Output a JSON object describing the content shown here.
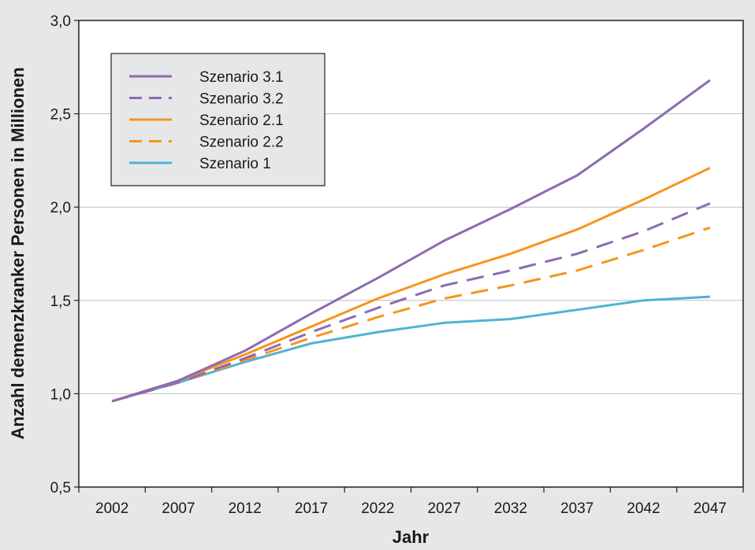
{
  "chart_data": {
    "type": "line",
    "title": "",
    "xlabel": "Jahr",
    "ylabel": "Anzahl demenzkranker Personen in Millionen",
    "categories": [
      "2002",
      "2007",
      "2012",
      "2017",
      "2022",
      "2027",
      "2032",
      "2037",
      "2042",
      "2047"
    ],
    "x": [
      2002,
      2007,
      2012,
      2017,
      2022,
      2027,
      2032,
      2037,
      2042,
      2047
    ],
    "ylim": [
      0.5,
      3.0
    ],
    "yticks": [
      0.5,
      1.0,
      1.5,
      2.0,
      2.5,
      3.0
    ],
    "ytick_labels": [
      "0,5",
      "1,0",
      "1,5",
      "2,0",
      "2,5",
      "3,0"
    ],
    "grid": "horizontal",
    "legend_position": "top-left",
    "series": [
      {
        "name": "Szenario 3.1",
        "color": "#8c6bb1",
        "dash": "solid",
        "values": [
          0.96,
          1.07,
          1.23,
          1.43,
          1.62,
          1.82,
          1.99,
          2.17,
          2.42,
          2.68
        ]
      },
      {
        "name": "Szenario 3.2",
        "color": "#8c6bb1",
        "dash": "dashed",
        "values": [
          0.96,
          1.06,
          1.19,
          1.33,
          1.46,
          1.58,
          1.66,
          1.75,
          1.87,
          2.02
        ]
      },
      {
        "name": "Szenario 2.1",
        "color": "#f7941d",
        "dash": "solid",
        "values": [
          0.96,
          1.07,
          1.21,
          1.36,
          1.51,
          1.64,
          1.75,
          1.88,
          2.04,
          2.21
        ]
      },
      {
        "name": "Szenario 2.2",
        "color": "#f7941d",
        "dash": "dashed",
        "values": [
          0.96,
          1.06,
          1.18,
          1.3,
          1.41,
          1.51,
          1.58,
          1.66,
          1.77,
          1.89
        ]
      },
      {
        "name": "Szenario 1",
        "color": "#4eb3d3",
        "dash": "solid",
        "values": [
          0.96,
          1.06,
          1.17,
          1.27,
          1.33,
          1.38,
          1.4,
          1.45,
          1.5,
          1.52
        ]
      }
    ]
  }
}
